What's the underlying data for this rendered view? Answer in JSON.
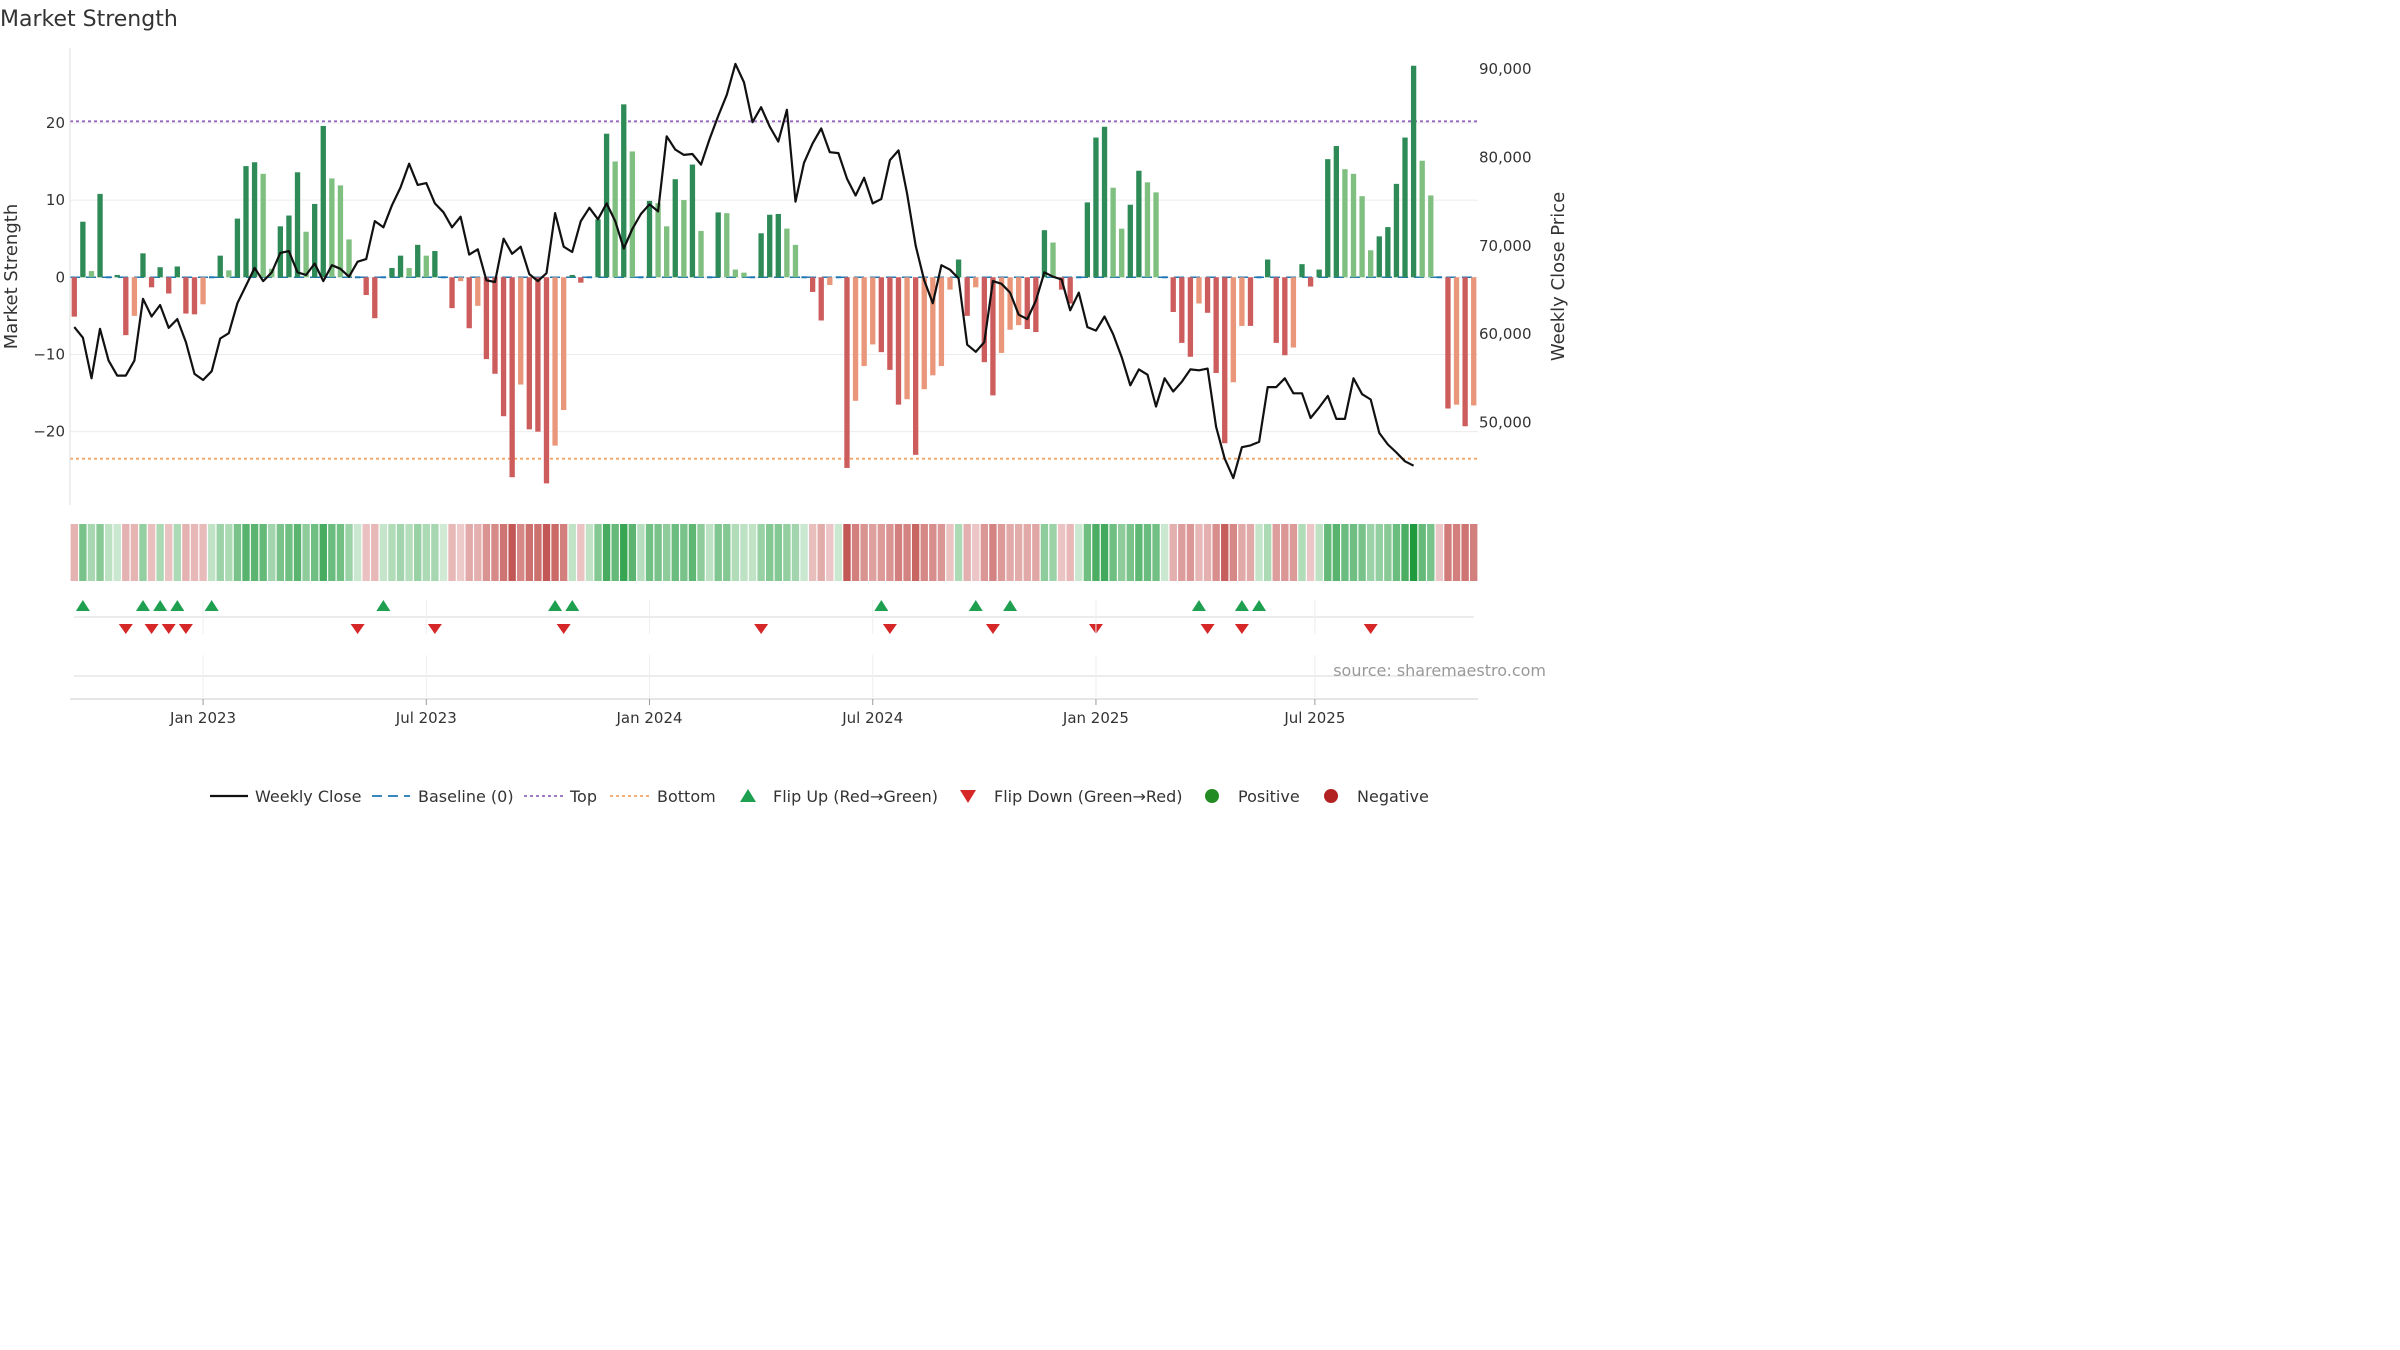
{
  "chart_data": {
    "type": "bar+line",
    "title": "Market Strength",
    "ylabel_left": "Market Strength",
    "ylabel_right": "Weekly Close Price",
    "source": "source: sharemaestro.com",
    "top_level": 20.2,
    "bottom_level": -23.5,
    "left_ylim": [
      -29.5,
      29.7
    ],
    "right_ylim": [
      40650,
      92400
    ],
    "left_ticks": [
      {
        "v": 20,
        "label": "20"
      },
      {
        "v": 10,
        "label": "10"
      },
      {
        "v": 0,
        "label": "0"
      },
      {
        "v": -10,
        "label": "−10"
      },
      {
        "v": -20,
        "label": "−20"
      }
    ],
    "right_ticks": [
      {
        "v": 90000,
        "label": "90,000"
      },
      {
        "v": 80000,
        "label": "80,000"
      },
      {
        "v": 70000,
        "label": "70,000"
      },
      {
        "v": 60000,
        "label": "60,000"
      },
      {
        "v": 50000,
        "label": "50,000"
      }
    ],
    "x_ticks": [
      {
        "i": 15.5,
        "label": "Jan 2023"
      },
      {
        "i": 41.5,
        "label": "Jul 2023"
      },
      {
        "i": 67.5,
        "label": "Jan 2024"
      },
      {
        "i": 93.5,
        "label": "Jul 2024"
      },
      {
        "i": 119.5,
        "label": "Jan 2025"
      },
      {
        "i": 145,
        "label": "Jul 2025"
      }
    ],
    "strength": [
      -5.1,
      7.2,
      0.8,
      10.8,
      0,
      0.3,
      -7.5,
      -5,
      3.1,
      -1.3,
      1.3,
      -2.1,
      1.4,
      -4.7,
      -4.8,
      -3.5,
      0,
      2.8,
      0.9,
      7.6,
      14.4,
      14.9,
      13.4,
      1.1,
      6.6,
      8,
      13.6,
      5.9,
      9.5,
      19.6,
      12.8,
      11.9,
      4.9,
      0,
      -2.3,
      -5.3,
      0,
      1.2,
      2.8,
      1.2,
      4.2,
      2.8,
      3.4,
      0,
      -4,
      -0.5,
      -6.6,
      -3.7,
      -10.6,
      -12.5,
      -18,
      -25.9,
      -13.9,
      -19.7,
      -20,
      -26.7,
      -21.8,
      -17.2,
      0.3,
      -0.7,
      0,
      7.5,
      18.6,
      15,
      22.4,
      16.3,
      0,
      9.9,
      9.6,
      6.6,
      12.7,
      10,
      14.6,
      6,
      0,
      8.4,
      8.3,
      1,
      0.6,
      0,
      5.7,
      8.1,
      8.2,
      6.3,
      4.2,
      0,
      -1.9,
      -5.6,
      -1,
      0,
      -24.7,
      -16,
      -11.5,
      -8.7,
      -9.7,
      -12,
      -16.5,
      -15.8,
      -23,
      -14.5,
      -12.7,
      -11.5,
      -1.6,
      2.3,
      -5,
      -1.3,
      -11,
      -15.3,
      -9.8,
      -6.8,
      -6.2,
      -6.7,
      -7.1,
      6.1,
      4.5,
      -1.6,
      -3.4,
      0,
      9.7,
      18.1,
      19.5,
      11.6,
      6.3,
      9.4,
      13.8,
      12.3,
      11,
      0,
      -4.5,
      -8.5,
      -10.3,
      -3.4,
      -4.6,
      -12.4,
      -21.5,
      -13.6,
      -6.3,
      -6.3,
      0,
      2.3,
      -8.5,
      -10.1,
      -9.1,
      1.7,
      -1.2,
      1,
      15.3,
      17,
      14,
      13.4,
      10.5,
      3.5,
      5.3,
      6.5,
      12.1,
      18.1,
      27.4,
      15.1,
      10.6,
      0,
      -17,
      -16.5,
      -19.3,
      -16.6
    ],
    "weekly_close": [
      60800,
      59600,
      55000,
      60600,
      57000,
      55300,
      55300,
      57000,
      64000,
      62000,
      63300,
      60700,
      61700,
      59100,
      55500,
      54800,
      55800,
      59500,
      60100,
      63500,
      65500,
      67500,
      66000,
      67000,
      69200,
      69400,
      67000,
      66700,
      68000,
      66000,
      67800,
      67400,
      66500,
      68200,
      68500,
      72800,
      72100,
      74600,
      76600,
      79300,
      76900,
      77100,
      74800,
      73800,
      72100,
      73300,
      69000,
      69600,
      66100,
      65900,
      70800,
      69100,
      69900,
      66800,
      66000,
      66900,
      73700,
      69900,
      69300,
      72800,
      74300,
      73000,
      74800,
      72800,
      69700,
      71900,
      73600,
      74700,
      73900,
      82400,
      80900,
      80300,
      80400,
      79200,
      82100,
      84700,
      87100,
      90600,
      88500,
      84000,
      85700,
      83500,
      81800,
      85400,
      75000,
      79400,
      81600,
      83300,
      80600,
      80500,
      77600,
      75700,
      77700,
      74800,
      75300,
      79700,
      80800,
      75900,
      70000,
      66100,
      63500,
      67800,
      67300,
      66300,
      58800,
      58000,
      59100,
      66000,
      65700,
      64700,
      62200,
      61700,
      63800,
      67000,
      66500,
      66200,
      62700,
      64700,
      60800,
      60400,
      62000,
      60000,
      57400,
      54200,
      56000,
      55400,
      51800,
      55000,
      53500,
      54600,
      56000,
      55900,
      56100,
      49500,
      45900,
      43700,
      47200,
      47400,
      47800,
      54000,
      54000,
      55000,
      53300,
      53300,
      50500,
      51700,
      53000,
      50400,
      50400,
      55000,
      53200,
      52600,
      48800,
      47500,
      46600,
      45600,
      45100
    ],
    "heat_band": [
      -0.33,
      0.55,
      0.32,
      0.48,
      0.22,
      0.15,
      -0.34,
      -0.32,
      0.42,
      -0.25,
      0.31,
      -0.23,
      0.3,
      -0.34,
      -0.3,
      -0.28,
      0.2,
      0.38,
      0.3,
      0.55,
      0.72,
      0.7,
      0.65,
      0.35,
      0.55,
      0.6,
      0.7,
      0.45,
      0.6,
      0.8,
      0.62,
      0.58,
      0.38,
      0.15,
      -0.24,
      -0.3,
      0.18,
      0.28,
      0.35,
      0.26,
      0.4,
      0.3,
      0.33,
      0.12,
      -0.3,
      -0.18,
      -0.4,
      -0.35,
      -0.55,
      -0.6,
      -0.75,
      -0.95,
      -0.62,
      -0.78,
      -0.78,
      -0.95,
      -0.82,
      -0.68,
      0.2,
      -0.22,
      0.2,
      0.5,
      0.8,
      0.65,
      0.88,
      0.7,
      0.25,
      0.58,
      0.55,
      0.45,
      0.62,
      0.55,
      0.68,
      0.45,
      0.22,
      0.52,
      0.5,
      0.28,
      0.22,
      0.2,
      0.4,
      0.5,
      0.5,
      0.42,
      0.35,
      0.15,
      -0.25,
      -0.38,
      -0.2,
      0.15,
      -0.95,
      -0.68,
      -0.55,
      -0.45,
      -0.5,
      -0.55,
      -0.68,
      -0.65,
      -0.85,
      -0.62,
      -0.58,
      -0.52,
      -0.22,
      0.3,
      -0.35,
      -0.2,
      -0.52,
      -0.65,
      -0.5,
      -0.4,
      -0.38,
      -0.4,
      -0.42,
      0.45,
      0.38,
      -0.22,
      -0.3,
      0.15,
      0.6,
      0.78,
      0.82,
      0.6,
      0.45,
      0.55,
      0.68,
      0.62,
      0.58,
      0.15,
      -0.35,
      -0.48,
      -0.52,
      -0.3,
      -0.35,
      -0.58,
      -0.9,
      -0.62,
      -0.4,
      -0.4,
      0.18,
      0.3,
      -0.48,
      -0.52,
      -0.5,
      0.28,
      -0.2,
      0.22,
      0.65,
      0.72,
      0.62,
      0.6,
      0.55,
      0.38,
      0.42,
      0.48,
      0.62,
      0.78,
      1,
      0.65,
      0.55,
      -0.2,
      -0.7,
      -0.68,
      -0.75,
      -0.68
    ],
    "flip_up_indices": [
      1,
      8,
      10,
      12,
      16,
      36,
      56,
      58,
      94,
      105,
      109,
      131,
      136,
      138
    ],
    "flip_down_indices": [
      6,
      9,
      11,
      13,
      33,
      42,
      57,
      80,
      95,
      107,
      119,
      132,
      136,
      151
    ],
    "legend": {
      "weekly_close": "Weekly Close",
      "baseline": "Baseline (0)",
      "top": "Top",
      "bottom": "Bottom",
      "flip_up": "Flip Up (Red→Green)",
      "flip_down": "Flip Down (Green→Red)",
      "positive": "Positive",
      "negative": "Negative"
    },
    "colors": {
      "pos_dark": "#2e8b57",
      "pos_light": "#7fbf7f",
      "neg_dark": "#cd5c5c",
      "neg_light": "#e9967a",
      "line": "#111111",
      "baseline": "#1f77b4",
      "top": "#9467bd",
      "bottom": "#f4a460",
      "flip_up": "#1fa050",
      "flip_down": "#d62728",
      "positive_dot": "#228b22",
      "negative_dot": "#b22222"
    }
  }
}
